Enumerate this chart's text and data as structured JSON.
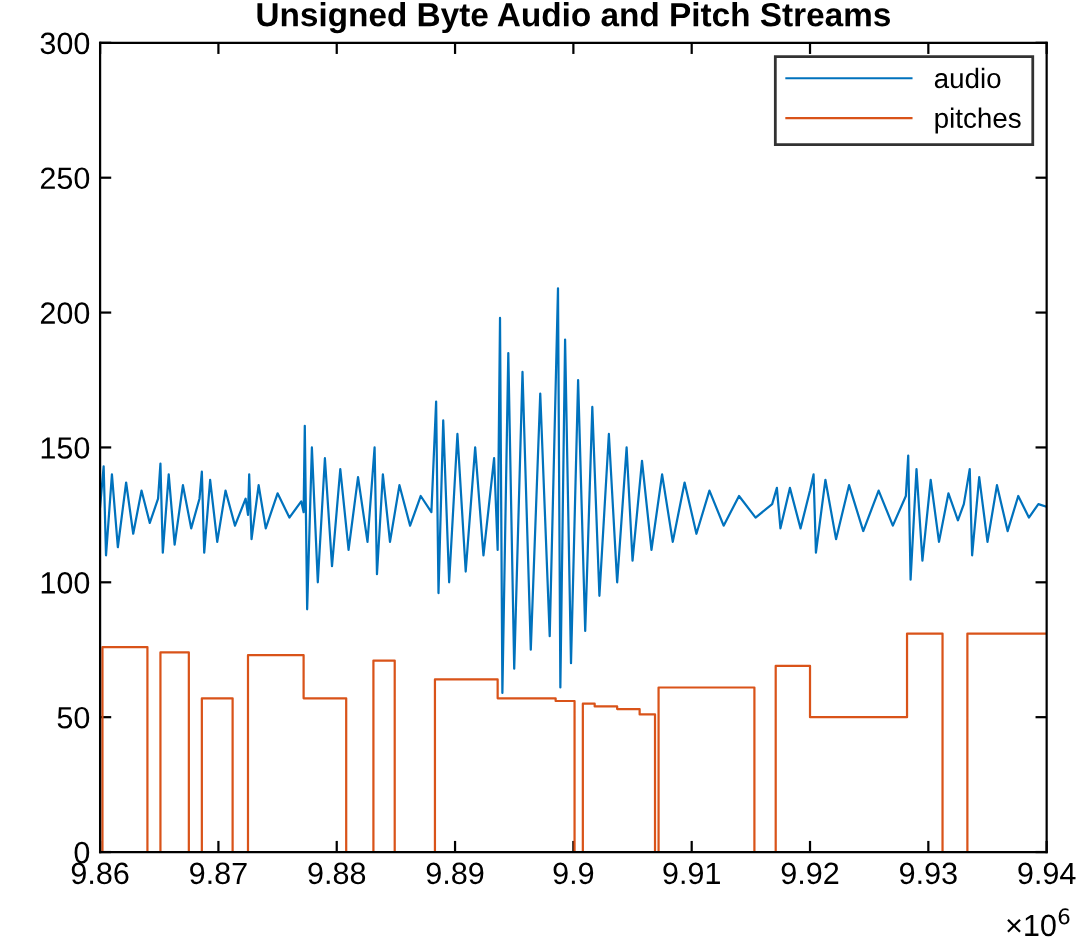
{
  "chart_data": {
    "type": "line",
    "title": "Unsigned Byte Audio and Pitch Streams",
    "xlim": [
      9.86,
      9.94
    ],
    "xticks": [
      9.86,
      9.87,
      9.88,
      9.89,
      9.9,
      9.91,
      9.92,
      9.93,
      9.94
    ],
    "ylim": [
      0,
      300
    ],
    "yticks": [
      0,
      50,
      100,
      150,
      200,
      250,
      300
    ],
    "grid": false,
    "legend": "top right",
    "marker": "none",
    "line_style": "solid",
    "annotations": [
      "×10$^{6}$"
    ],
    "series": [
      {
        "name": "audio",
        "color": "#0072bd",
        "x": [
          9.86,
          9.8603,
          9.8605,
          9.861,
          9.8615,
          9.8622,
          9.8628,
          9.8635,
          9.8642,
          9.8649,
          9.8651,
          9.8653,
          9.8658,
          9.8663,
          9.867,
          9.8677,
          9.8684,
          9.8686,
          9.8688,
          9.8693,
          9.8699,
          9.8706,
          9.8714,
          9.8723,
          9.8725,
          9.8726,
          9.8728,
          9.8734,
          9.874,
          9.875,
          9.876,
          9.877,
          9.8772,
          9.8773,
          9.8775,
          9.8779,
          9.8784,
          9.879,
          9.8796,
          9.8803,
          9.881,
          9.8818,
          9.8826,
          9.8832,
          9.8834,
          9.8839,
          9.8845,
          9.8853,
          9.8862,
          9.8871,
          9.888,
          9.8884,
          9.8886,
          9.889,
          9.8895,
          9.8902,
          9.8909,
          9.8917,
          9.8924,
          9.8933,
          9.8936,
          9.8938,
          9.894,
          9.8945,
          9.895,
          9.8957,
          9.8964,
          9.8972,
          9.898,
          9.8987,
          9.8989,
          9.8993,
          9.8998,
          9.9004,
          9.901,
          9.9016,
          9.9022,
          9.903,
          9.9037,
          9.9045,
          9.905,
          9.9058,
          9.9066,
          9.9075,
          9.9084,
          9.9094,
          9.9104,
          9.9115,
          9.9127,
          9.914,
          9.9154,
          9.9168,
          9.9172,
          9.9175,
          9.9183,
          9.9192,
          9.92,
          9.9203,
          9.9205,
          9.9213,
          9.9222,
          9.9233,
          9.9245,
          9.9258,
          9.927,
          9.9281,
          9.9283,
          9.9285,
          9.929,
          9.9295,
          9.9302,
          9.9309,
          9.9317,
          9.9325,
          9.933,
          9.9335,
          9.9337,
          9.9343,
          9.935,
          9.9358,
          9.9367,
          9.9376,
          9.9385,
          9.9393,
          9.94
        ],
        "values": [
          128,
          143,
          110,
          140,
          113,
          137,
          118,
          134,
          122,
          131,
          144,
          111,
          140,
          114,
          136,
          120,
          131,
          141,
          111,
          138,
          115,
          134,
          121,
          131,
          125,
          140,
          116,
          136,
          120,
          133,
          124,
          130,
          126,
          158,
          90,
          150,
          100,
          146,
          106,
          142,
          112,
          139,
          115,
          150,
          103,
          140,
          115,
          136,
          121,
          132,
          126,
          167,
          96,
          160,
          100,
          155,
          104,
          150,
          110,
          146,
          112,
          198,
          59,
          185,
          68,
          178,
          75,
          170,
          80,
          209,
          61,
          190,
          70,
          175,
          82,
          165,
          95,
          155,
          100,
          150,
          108,
          145,
          112,
          140,
          115,
          137,
          118,
          134,
          121,
          132,
          124,
          129,
          135,
          120,
          135,
          120,
          134,
          140,
          111,
          138,
          116,
          136,
          119,
          134,
          121,
          132,
          147,
          101,
          142,
          108,
          138,
          115,
          133,
          123,
          129,
          142,
          110,
          139,
          115,
          136,
          119,
          132,
          124,
          129,
          128
        ]
      },
      {
        "name": "pitches",
        "color": "#d95319",
        "type": "step",
        "x": [
          9.86,
          9.8602,
          9.864,
          9.8651,
          9.8675,
          9.8686,
          9.8712,
          9.8725,
          9.8772,
          9.8808,
          9.8831,
          9.8849,
          9.8883,
          9.8936,
          9.8985,
          9.9001,
          9.9008,
          9.9018,
          9.9037,
          9.9056,
          9.9069,
          9.9072,
          9.9153,
          9.9171,
          9.92,
          9.9282,
          9.9312,
          9.9333,
          9.94
        ],
        "values": [
          0,
          76,
          0,
          74,
          0,
          57,
          0,
          73,
          57,
          0,
          71,
          0,
          64,
          57,
          56,
          0,
          55,
          54,
          53,
          51,
          0,
          61,
          0,
          69,
          50,
          81,
          0,
          81,
          81
        ]
      }
    ]
  }
}
